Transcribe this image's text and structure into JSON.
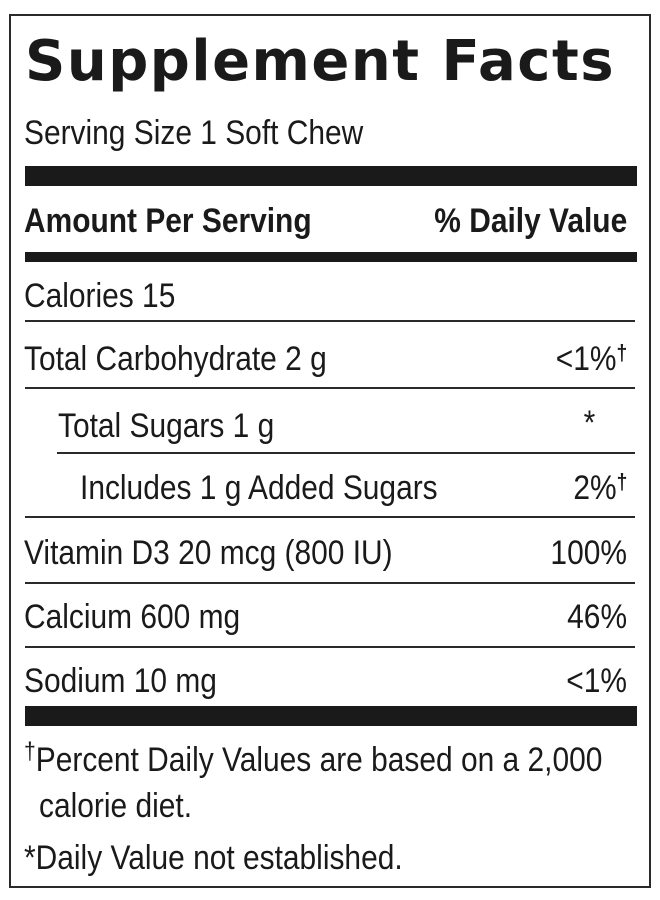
{
  "panel": {
    "title": "Supplement Facts",
    "serving_size": "Serving Size 1 Soft Chew"
  },
  "header": {
    "amount_label": "Amount Per Serving",
    "dv_label": "% Daily Value"
  },
  "rows": [
    {
      "name": "Calories 15",
      "dv": "",
      "dv_mark": ""
    },
    {
      "name": "Total Carbohydrate 2 g",
      "dv": "<1%",
      "dv_mark": "†"
    },
    {
      "name": "Total Sugars 1 g",
      "dv": "*",
      "dv_mark": ""
    },
    {
      "name": "Includes 1 g Added Sugars",
      "dv": "2%",
      "dv_mark": "†"
    },
    {
      "name": "Vitamin D3 20 mcg (800 IU)",
      "dv": "100%",
      "dv_mark": ""
    },
    {
      "name": "Calcium 600 mg",
      "dv": "46%",
      "dv_mark": ""
    },
    {
      "name": "Sodium 10 mg",
      "dv": "<1%",
      "dv_mark": ""
    }
  ],
  "footnotes": {
    "dagger_mark": "†",
    "dagger_line1": "Percent Daily Values are based on a 2,000",
    "dagger_line2": "calorie diet.",
    "star_mark": "*",
    "star_text": "Daily Value not established."
  }
}
